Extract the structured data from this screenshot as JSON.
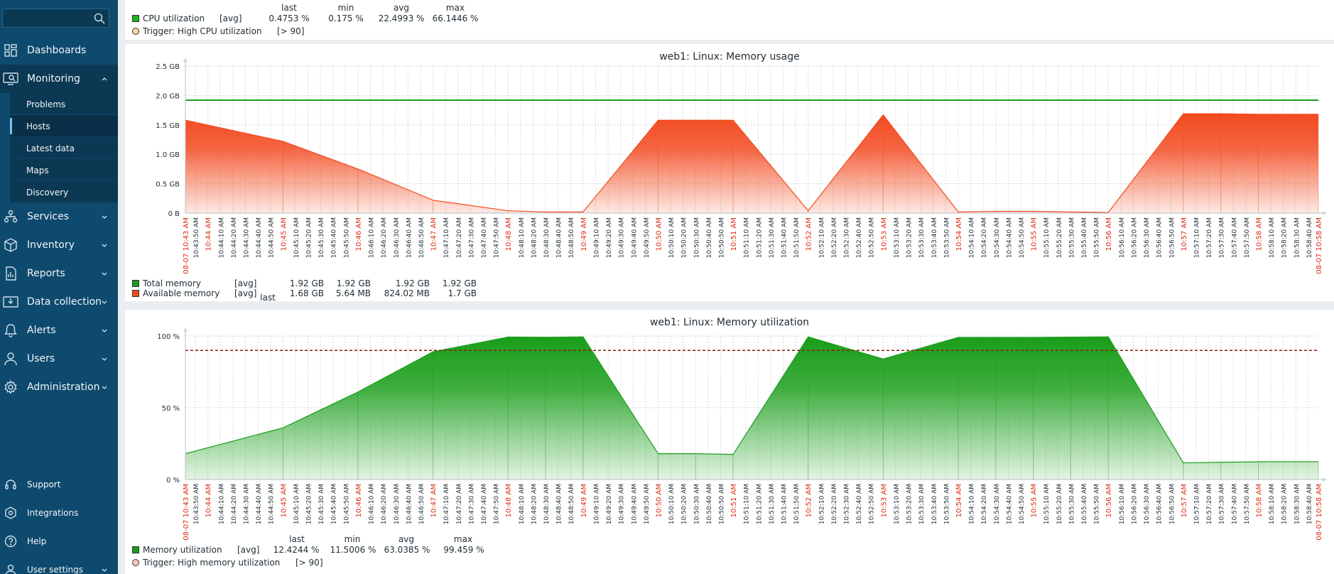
{
  "sidebar": {
    "search": {
      "placeholder": ""
    },
    "nav": [
      {
        "label": "Dashboards",
        "icon": "dashboards-icon"
      },
      {
        "label": "Monitoring",
        "icon": "monitoring-icon"
      },
      {
        "label": "Services",
        "icon": "services-icon"
      },
      {
        "label": "Inventory",
        "icon": "inventory-icon"
      },
      {
        "label": "Reports",
        "icon": "reports-icon"
      },
      {
        "label": "Data collection",
        "icon": "data-collection-icon"
      },
      {
        "label": "Alerts",
        "icon": "alerts-icon"
      },
      {
        "label": "Users",
        "icon": "users-icon"
      },
      {
        "label": "Administration",
        "icon": "administration-icon"
      }
    ],
    "monitoring_sub": [
      "Problems",
      "Hosts",
      "Latest data",
      "Maps",
      "Discovery"
    ],
    "bottom": [
      {
        "label": "Support",
        "icon": "support-icon"
      },
      {
        "label": "Integrations",
        "icon": "integrations-icon"
      },
      {
        "label": "Help",
        "icon": "help-icon"
      },
      {
        "label": "User settings",
        "icon": "user-settings-icon"
      }
    ]
  },
  "cpu_panel": {
    "headers": {
      "last": "last",
      "min": "min",
      "avg": "avg",
      "max": "max"
    },
    "rows": [
      {
        "name": "CPU utilization",
        "func": "[avg]",
        "last": "0.4753 %",
        "min": "0.175 %",
        "avg": "22.4993 %",
        "max": "66.1446 %",
        "color": "#1bb31b"
      }
    ],
    "trigger": {
      "label": "Trigger: High CPU utilization",
      "value": "[> 90]",
      "color": "#f9d9a3"
    }
  },
  "chart_data": [
    {
      "type": "area",
      "title": "web1: Linux: Memory usage",
      "y_ticks": [
        "0 B",
        "0.5 GB",
        "1.0 GB",
        "1.5 GB",
        "2.0 GB",
        "2.5 GB"
      ],
      "ylim": [
        0,
        2.5
      ],
      "x_start_label": "08-07 10:43 AM",
      "x_end_label": "08-07 10:58 AM",
      "x_range_minutes": [
        43.7,
        58.8
      ],
      "series": [
        {
          "name": "Total memory",
          "func": "[avg]",
          "last": "1.92 GB",
          "min": "1.92 GB",
          "avg": "1.92 GB",
          "max": "1.92 GB",
          "color": "#1a9e1a",
          "style": "line",
          "points": [
            [
              43.7,
              1.92
            ],
            [
              58.8,
              1.92
            ]
          ]
        },
        {
          "name": "Available memory",
          "func": "[avg]",
          "last": "1.68 GB",
          "min": "5.64 MB",
          "avg": "824.02 MB",
          "max": "1.7 GB",
          "color": "#f24a1f",
          "style": "area",
          "points": [
            [
              43.7,
              1.58
            ],
            [
              45.0,
              1.22
            ],
            [
              46.0,
              0.75
            ],
            [
              47.0,
              0.22
            ],
            [
              48.0,
              0.04
            ],
            [
              48.5,
              0.02
            ],
            [
              49.0,
              0.02
            ],
            [
              50.0,
              1.58
            ],
            [
              51.0,
              1.58
            ],
            [
              52.0,
              0.04
            ],
            [
              53.0,
              1.67
            ],
            [
              54.0,
              0.02
            ],
            [
              54.5,
              0.03
            ],
            [
              55.0,
              0.03
            ],
            [
              55.5,
              0.02
            ],
            [
              56.0,
              0.01
            ],
            [
              57.0,
              1.69
            ],
            [
              57.5,
              1.69
            ],
            [
              58.0,
              1.68
            ],
            [
              58.8,
              1.68
            ]
          ]
        }
      ]
    },
    {
      "type": "area",
      "title": "web1: Linux: Memory utilization",
      "y_ticks": [
        "0 %",
        "50 %",
        "100 %"
      ],
      "ylim": [
        0,
        100
      ],
      "x_start_label": "08-07 10:43 AM",
      "x_end_label": "08-07 10:58 AM",
      "x_range_minutes": [
        43.7,
        58.8
      ],
      "threshold": 90,
      "series": [
        {
          "name": "Memory utilization",
          "func": "[avg]",
          "last": "12.4244 %",
          "min": "11.5006 %",
          "avg": "63.0385 %",
          "max": "99.459 %",
          "color": "#1a9e1a",
          "style": "area",
          "points": [
            [
              43.7,
              18
            ],
            [
              45.0,
              36
            ],
            [
              46.0,
              61
            ],
            [
              47.0,
              89
            ],
            [
              48.0,
              99.3
            ],
            [
              48.5,
              99.1
            ],
            [
              49.0,
              99.4
            ],
            [
              50.0,
              18
            ],
            [
              50.5,
              18
            ],
            [
              51.0,
              17.5
            ],
            [
              52.0,
              99.4
            ],
            [
              53.0,
              84
            ],
            [
              54.0,
              99
            ],
            [
              54.5,
              99
            ],
            [
              55.0,
              99
            ],
            [
              55.5,
              99.2
            ],
            [
              56.0,
              99.4
            ],
            [
              57.0,
              11.6
            ],
            [
              57.5,
              12
            ],
            [
              58.0,
              12.3
            ],
            [
              58.8,
              12.4
            ]
          ]
        }
      ],
      "legend_headers": {
        "last": "last",
        "min": "min",
        "avg": "avg",
        "max": "max"
      },
      "trigger": {
        "label": "Trigger: High memory utilization",
        "value": "[> 90]",
        "color": "#f7c7bf"
      }
    }
  ],
  "colors": {
    "sidebar_bg": "#0e4a6e",
    "accent_red": "#e32e12",
    "major_label_red": "#dc2a0f"
  }
}
